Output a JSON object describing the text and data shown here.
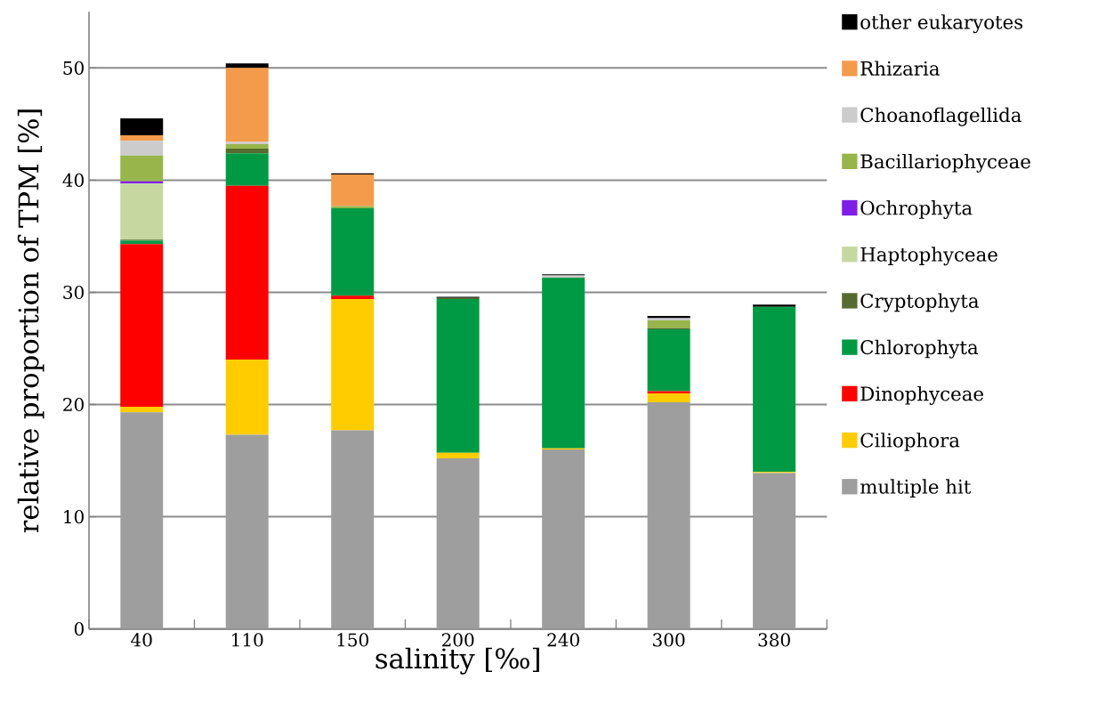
{
  "chart_data": {
    "type": "bar",
    "stacked": true,
    "xlabel": "salinity [‰]",
    "ylabel": "relative proportion of TPM [%]",
    "categories": [
      "40",
      "110",
      "150",
      "200",
      "240",
      "300",
      "380"
    ],
    "ylim": [
      0,
      55
    ],
    "yticks": [
      0,
      10,
      20,
      30,
      40,
      50
    ],
    "grid": "y",
    "legend": "right",
    "series": [
      {
        "name": "multiple hit",
        "color": "#9d9e9d",
        "values": [
          19.3,
          17.3,
          17.7,
          15.2,
          16.0,
          20.2,
          13.9
        ]
      },
      {
        "name": "Ciliophora",
        "color": "#ffcc00",
        "values": [
          0.5,
          6.7,
          11.7,
          0.5,
          0.1,
          0.8,
          0.1
        ]
      },
      {
        "name": "Dinophyceae",
        "color": "#ff0000",
        "values": [
          14.5,
          15.5,
          0.3,
          0,
          0,
          0.2,
          0
        ]
      },
      {
        "name": "Chlorophyta",
        "color": "#009a44",
        "values": [
          0.3,
          2.9,
          7.8,
          13.7,
          15.2,
          5.5,
          14.7
        ]
      },
      {
        "name": "Cryptophyta",
        "color": "#556b2f",
        "values": [
          0.1,
          0.4,
          0,
          0.1,
          0,
          0.1,
          0
        ]
      },
      {
        "name": "Haptophyceae",
        "color": "#c6d89f",
        "values": [
          5.0,
          0,
          0,
          0,
          0,
          0,
          0
        ]
      },
      {
        "name": "Ochrophyta",
        "color": "#7f1fe6",
        "values": [
          0.2,
          0,
          0,
          0,
          0,
          0,
          0
        ]
      },
      {
        "name": "Bacillariophyceae",
        "color": "#97b54a",
        "values": [
          2.3,
          0.4,
          0.2,
          0,
          0,
          0.7,
          0
        ]
      },
      {
        "name": "Choanoflagellida",
        "color": "#cccccc",
        "values": [
          1.3,
          0.2,
          0,
          0,
          0.2,
          0.2,
          0
        ]
      },
      {
        "name": "Rhizaria",
        "color": "#f39a4b",
        "values": [
          0.5,
          6.6,
          2.8,
          0,
          0,
          0,
          0
        ]
      },
      {
        "name": "other eukaryotes",
        "color": "#000000",
        "values": [
          1.5,
          0.4,
          0.1,
          0.1,
          0.1,
          0.2,
          0.2
        ]
      }
    ]
  }
}
